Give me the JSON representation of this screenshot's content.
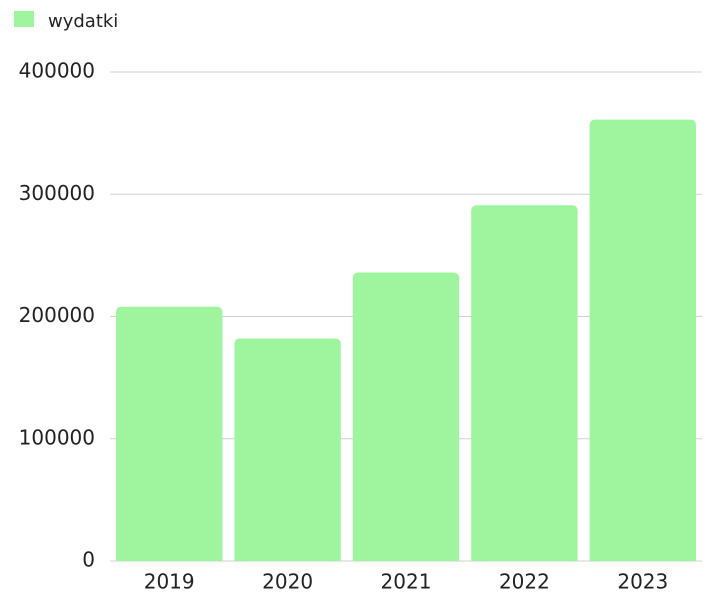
{
  "chart_data": {
    "type": "bar",
    "categories": [
      "2019",
      "2020",
      "2021",
      "2022",
      "2023"
    ],
    "series": [
      {
        "name": "wydatki",
        "color": "#9ef59e",
        "values": [
          208000,
          182000,
          236000,
          291000,
          361000
        ]
      }
    ],
    "ylim": [
      0,
      400000
    ],
    "yticks": [
      0,
      100000,
      200000,
      300000,
      400000
    ],
    "grid": true,
    "legend": "top-left"
  }
}
